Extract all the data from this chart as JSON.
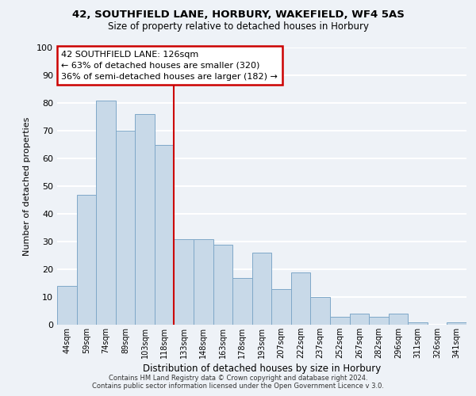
{
  "title1": "42, SOUTHFIELD LANE, HORBURY, WAKEFIELD, WF4 5AS",
  "title2": "Size of property relative to detached houses in Horbury",
  "xlabel": "Distribution of detached houses by size in Horbury",
  "ylabel": "Number of detached properties",
  "bar_labels": [
    "44sqm",
    "59sqm",
    "74sqm",
    "89sqm",
    "103sqm",
    "118sqm",
    "133sqm",
    "148sqm",
    "163sqm",
    "178sqm",
    "193sqm",
    "207sqm",
    "222sqm",
    "237sqm",
    "252sqm",
    "267sqm",
    "282sqm",
    "296sqm",
    "311sqm",
    "326sqm",
    "341sqm"
  ],
  "bar_values": [
    14,
    47,
    81,
    70,
    76,
    65,
    31,
    31,
    29,
    17,
    26,
    13,
    19,
    10,
    3,
    4,
    3,
    4,
    1,
    0,
    1
  ],
  "bar_color": "#c8d9e8",
  "bar_edgecolor": "#7fa8c8",
  "vline_x": 6,
  "vline_color": "#cc0000",
  "ylim": [
    0,
    100
  ],
  "yticks": [
    0,
    10,
    20,
    30,
    40,
    50,
    60,
    70,
    80,
    90,
    100
  ],
  "annotation_title": "42 SOUTHFIELD LANE: 126sqm",
  "annotation_line1": "← 63% of detached houses are smaller (320)",
  "annotation_line2": "36% of semi-detached houses are larger (182) →",
  "annotation_box_color": "#ffffff",
  "annotation_box_edgecolor": "#cc0000",
  "footer1": "Contains HM Land Registry data © Crown copyright and database right 2024.",
  "footer2": "Contains public sector information licensed under the Open Government Licence v 3.0.",
  "background_color": "#eef2f7",
  "grid_color": "#ffffff"
}
